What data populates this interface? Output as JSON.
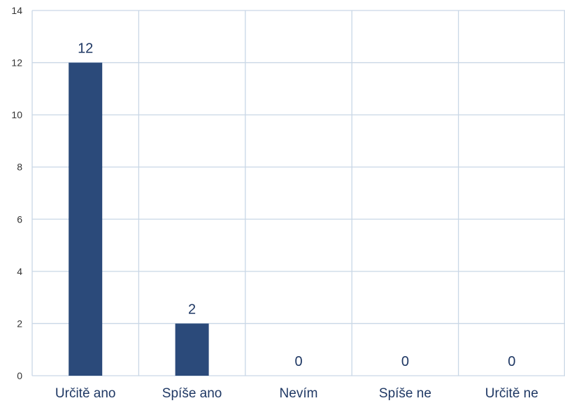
{
  "chart_data": {
    "type": "bar",
    "categories": [
      "Určitě ano",
      "Spíše ano",
      "Nevím",
      "Spíše ne",
      "Určitě ne"
    ],
    "values": [
      12,
      2,
      0,
      0,
      0
    ],
    "data_labels": [
      "12",
      "2",
      "0",
      "0",
      "0"
    ],
    "ylim": [
      0,
      14
    ],
    "yticks": [
      "0",
      "2",
      "4",
      "6",
      "8",
      "10",
      "12",
      "14"
    ],
    "grid": true,
    "legend": "none",
    "colors": {
      "bar": "#2b4a7a",
      "grid": "#c9d7e6",
      "label": "#1f3864",
      "tick": "#333333"
    }
  }
}
